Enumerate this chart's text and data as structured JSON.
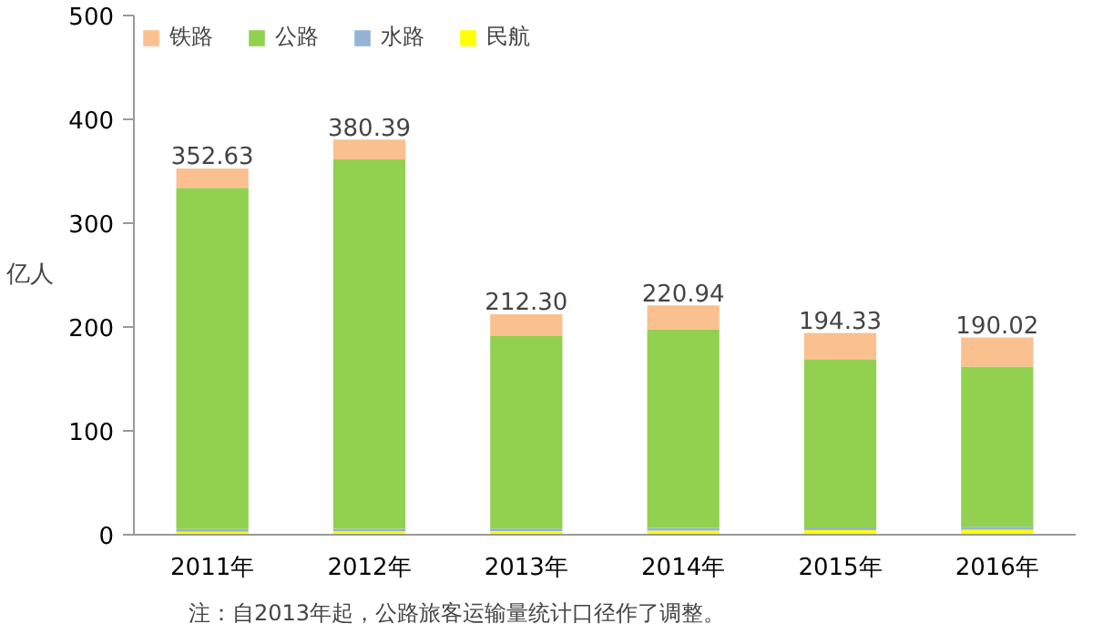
{
  "chart_data": {
    "type": "bar",
    "stacked": true,
    "ylabel": "亿人",
    "categories": [
      "2011年",
      "2012年",
      "2013年",
      "2014年",
      "2015年",
      "2016年"
    ],
    "series": [
      {
        "name": "民航",
        "color": "#ffff00",
        "values": [
          2.93,
          3.19,
          3.54,
          3.92,
          4.36,
          4.88
        ]
      },
      {
        "name": "水路",
        "color": "#95b3d7",
        "values": [
          2.46,
          2.58,
          2.35,
          2.63,
          2.71,
          2.72
        ]
      },
      {
        "name": "公路",
        "color": "#92d050",
        "values": [
          328.62,
          355.7,
          185.35,
          190.82,
          161.91,
          154.28
        ]
      },
      {
        "name": "铁路",
        "color": "#fac090",
        "values": [
          18.62,
          18.92,
          21.06,
          23.57,
          25.35,
          28.14
        ]
      }
    ],
    "totals": [
      "352.63",
      "380.39",
      "212.30",
      "220.94",
      "194.33",
      "190.02"
    ],
    "ylim": [
      0,
      500
    ],
    "yticks": [
      0,
      100,
      200,
      300,
      400,
      500
    ],
    "grid": false,
    "legend": "top left",
    "annotations": [
      "注：自2013年起，公路旅客运输量统计口径作了调整。"
    ]
  }
}
